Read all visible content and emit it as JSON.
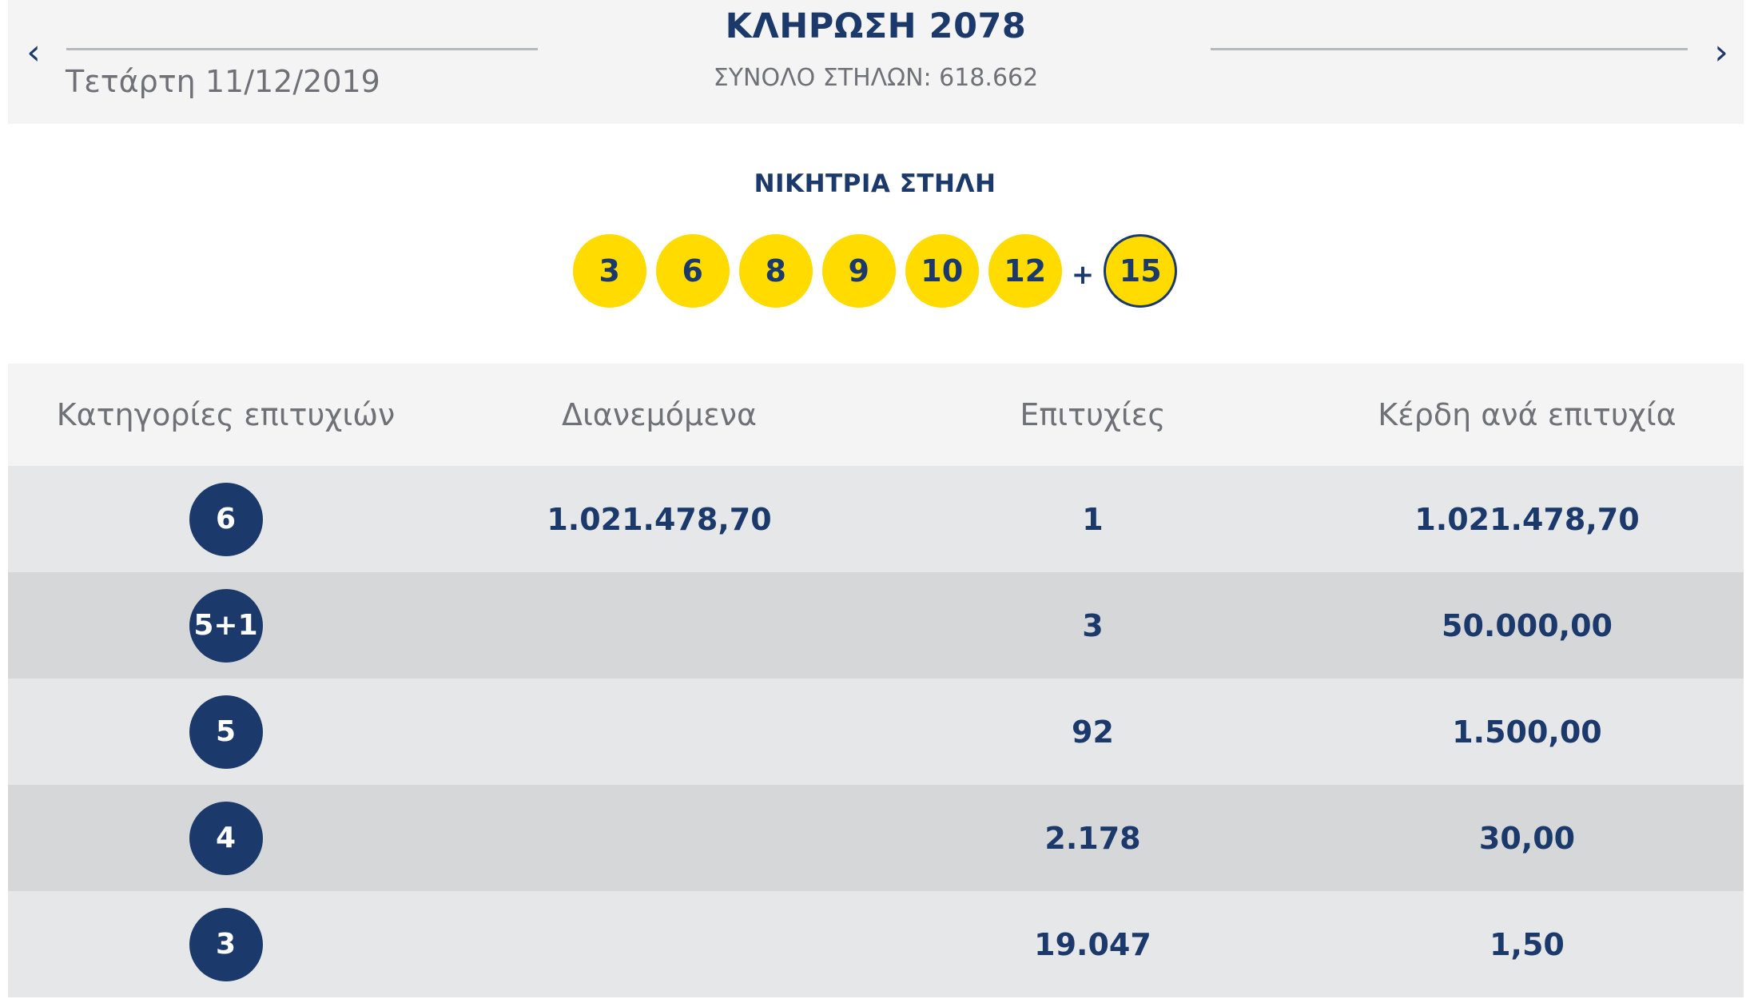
{
  "header": {
    "prev_arrow": "‹",
    "next_arrow": "›",
    "date": "Τετάρτη 11/12/2019",
    "title": "ΚΛΗΡΩΣΗ 2078",
    "total_columns": "ΣΥΝΟΛΟ ΣΤΗΛΩΝ: 618.662"
  },
  "winning": {
    "label": "ΝΙΚΗΤΡΙΑ ΣΤΗΛΗ",
    "numbers": [
      "3",
      "6",
      "8",
      "9",
      "10",
      "12"
    ],
    "plus": "+",
    "bonus": "15"
  },
  "table": {
    "headers": [
      "Κατηγορίες επιτυχιών",
      "Διανεμόμενα",
      "Επιτυχίες",
      "Κέρδη ανά επιτυχία"
    ],
    "rows": [
      {
        "category": "6",
        "distributed": "1.021.478,70",
        "winners": "1",
        "prize": "1.021.478,70"
      },
      {
        "category": "5+1",
        "distributed": "",
        "winners": "3",
        "prize": "50.000,00"
      },
      {
        "category": "5",
        "distributed": "",
        "winners": "92",
        "prize": "1.500,00"
      },
      {
        "category": "4",
        "distributed": "",
        "winners": "2.178",
        "prize": "30,00"
      },
      {
        "category": "3",
        "distributed": "",
        "winners": "19.047",
        "prize": "1,50"
      }
    ]
  },
  "colors": {
    "navy": "#1b3a6b",
    "ball_yellow": "#ffdb00",
    "header_bg": "#f4f4f5",
    "row_light": "#e6e7e9",
    "row_dark": "#d6d7d9"
  }
}
